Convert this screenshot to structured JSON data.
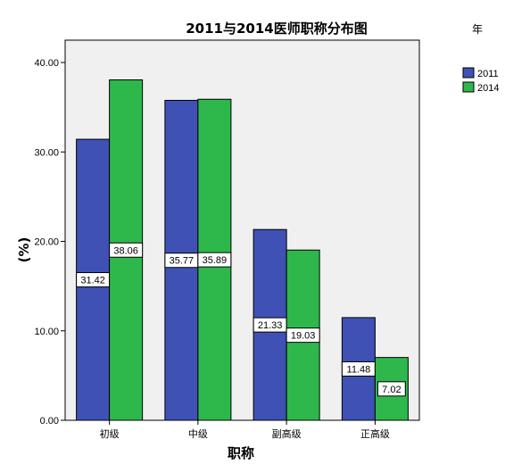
{
  "chart_data": {
    "type": "bar",
    "title": "2011与2014医师职称分布图",
    "xlabel": "职称",
    "ylabel": "(%)",
    "categories": [
      "初级",
      "中级",
      "副高级",
      "正高级"
    ],
    "series": [
      {
        "name": "2011",
        "color": "#3f51b5",
        "values": [
          31.42,
          35.77,
          21.33,
          11.48
        ]
      },
      {
        "name": "2014",
        "color": "#2eb84b",
        "values": [
          38.06,
          35.89,
          19.03,
          7.02
        ]
      }
    ],
    "ylim": [
      0,
      42.5
    ],
    "yticks": [
      0,
      10,
      20,
      30,
      40
    ],
    "ytick_labels": [
      "0.00",
      "10.00",
      "20.00",
      "30.00",
      "40.00"
    ],
    "legend": {
      "title": "年",
      "position": "top-right"
    },
    "plot_background": "#f0f0f0",
    "grid": false
  }
}
